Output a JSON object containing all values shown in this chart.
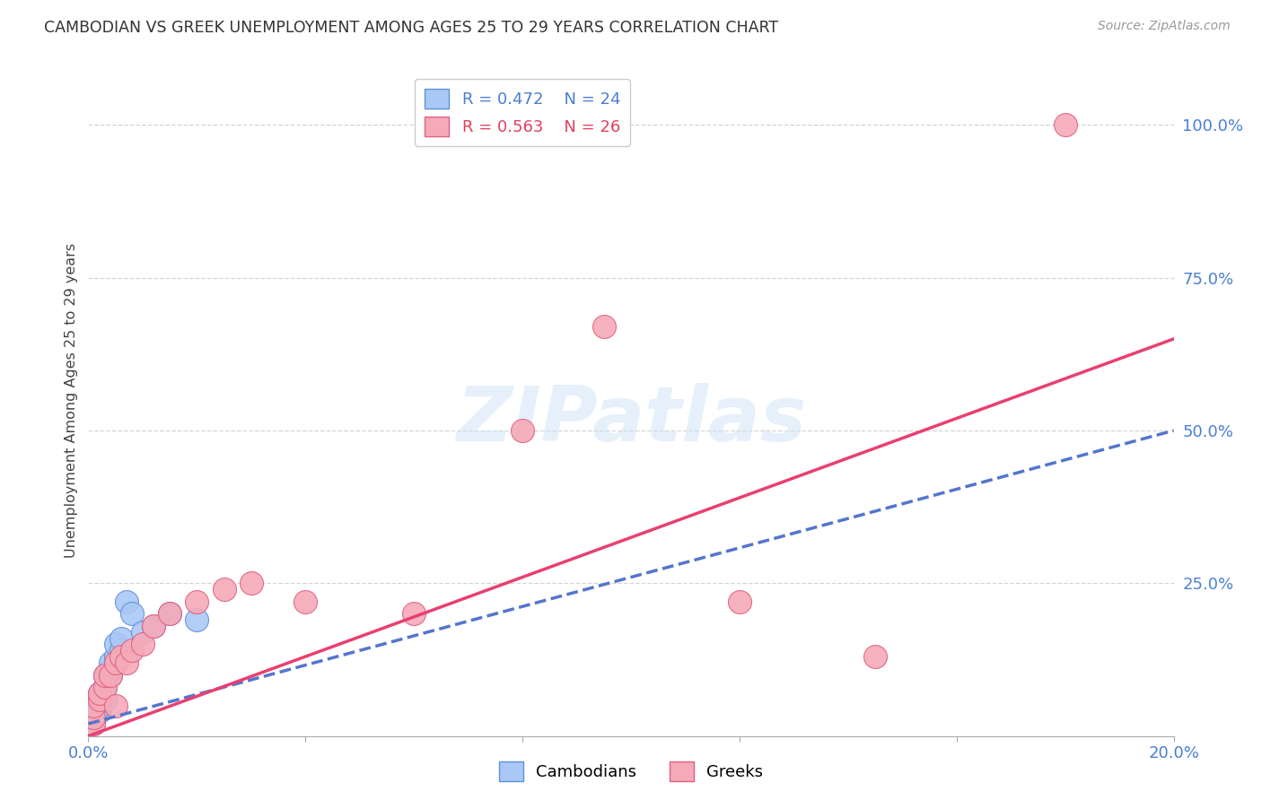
{
  "title": "CAMBODIAN VS GREEK UNEMPLOYMENT AMONG AGES 25 TO 29 YEARS CORRELATION CHART",
  "source": "Source: ZipAtlas.com",
  "ylabel": "Unemployment Among Ages 25 to 29 years",
  "x_min": 0.0,
  "x_max": 0.2,
  "y_min": 0.0,
  "y_max": 1.1,
  "y_tick_labels_right": [
    "100.0%",
    "75.0%",
    "50.0%",
    "25.0%"
  ],
  "y_tick_vals_right": [
    1.0,
    0.75,
    0.5,
    0.25
  ],
  "cambodian_color": "#aac8f5",
  "greek_color": "#f5aab8",
  "cambodian_edge_color": "#6090d8",
  "greek_edge_color": "#e06080",
  "trend_cambodian_color": "#5575cc",
  "trend_greek_color": "#e84070",
  "legend_R_cambodian": "R = 0.472",
  "legend_N_cambodian": "N = 24",
  "legend_R_greek": "R = 0.563",
  "legend_N_greek": "N = 26",
  "background_color": "#ffffff",
  "grid_color": "#cccccc",
  "cam_x": [
    0.001,
    0.001,
    0.001,
    0.002,
    0.002,
    0.002,
    0.002,
    0.003,
    0.003,
    0.003,
    0.004,
    0.004,
    0.004,
    0.005,
    0.005,
    0.005,
    0.006,
    0.006,
    0.007,
    0.008,
    0.01,
    0.012,
    0.015,
    0.02
  ],
  "cam_y": [
    0.02,
    0.03,
    0.04,
    0.04,
    0.05,
    0.06,
    0.07,
    0.06,
    0.08,
    0.1,
    0.1,
    0.11,
    0.12,
    0.12,
    0.13,
    0.15,
    0.14,
    0.16,
    0.22,
    0.2,
    0.17,
    0.18,
    0.2,
    0.19
  ],
  "grk_x": [
    0.001,
    0.001,
    0.001,
    0.002,
    0.002,
    0.003,
    0.003,
    0.004,
    0.005,
    0.005,
    0.006,
    0.007,
    0.008,
    0.01,
    0.012,
    0.015,
    0.02,
    0.025,
    0.03,
    0.04,
    0.06,
    0.08,
    0.095,
    0.12,
    0.145,
    0.18
  ],
  "grk_y": [
    0.02,
    0.03,
    0.05,
    0.06,
    0.07,
    0.08,
    0.1,
    0.1,
    0.12,
    0.05,
    0.13,
    0.12,
    0.14,
    0.15,
    0.18,
    0.2,
    0.22,
    0.24,
    0.25,
    0.22,
    0.2,
    0.5,
    0.67,
    0.22,
    0.13,
    1.0
  ],
  "trend_cam_x0": 0.0,
  "trend_cam_y0": 0.02,
  "trend_cam_x1": 0.2,
  "trend_cam_y1": 0.5,
  "trend_grk_x0": 0.0,
  "trend_grk_y0": 0.0,
  "trend_grk_x1": 0.2,
  "trend_grk_y1": 0.65
}
